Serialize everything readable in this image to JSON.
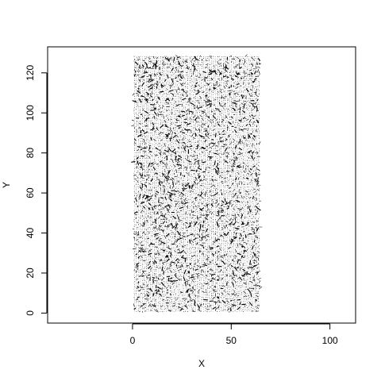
{
  "chart_data": {
    "type": "vector field",
    "xlabel": "X",
    "ylabel": "Y",
    "xlim": [
      -43,
      113
    ],
    "ylim": [
      -5,
      133
    ],
    "x_ticks": [
      0,
      50,
      100
    ],
    "y_ticks": [
      0,
      20,
      40,
      60,
      80,
      100,
      120
    ],
    "x_tick_labels": [
      "0",
      "50",
      "100"
    ],
    "y_tick_labels": [
      "0",
      "20",
      "40",
      "60",
      "80",
      "100",
      "120"
    ],
    "grid": false,
    "legend": "none",
    "colors": {
      "arrows": "#000000",
      "axes": "#000000",
      "background": "#ffffff"
    },
    "field": {
      "x_range": [
        1,
        64
      ],
      "y_range": [
        1,
        128
      ],
      "x_step": 1,
      "y_step": 1,
      "description": "dense grid of short arrows; texture covers roughly X 1–64, Y 0–128"
    }
  }
}
